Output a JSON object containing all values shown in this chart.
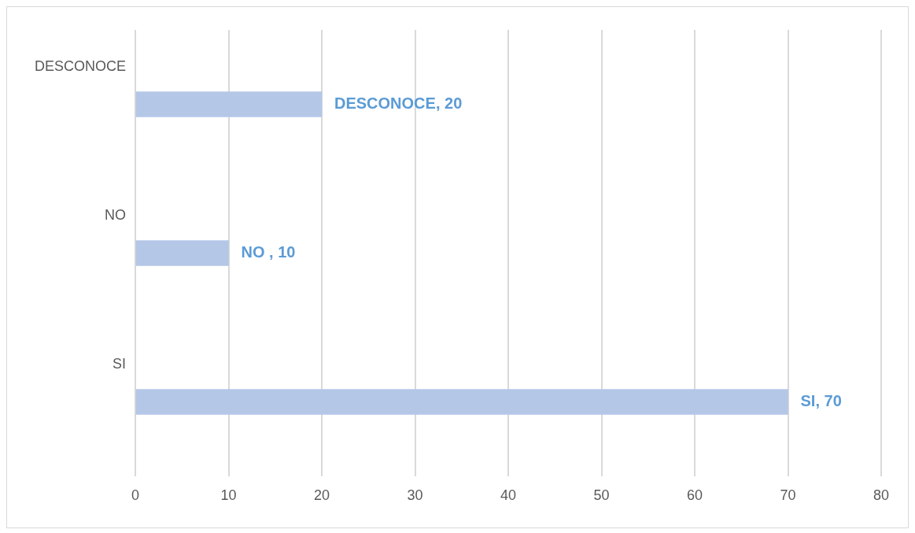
{
  "chart_data": {
    "type": "bar",
    "orientation": "horizontal",
    "categories": [
      "DESCONOCE",
      "NO",
      "SI"
    ],
    "values": [
      20,
      10,
      70
    ],
    "value_labels": [
      "DESCONOCE, 20",
      "NO , 10",
      "SI, 70"
    ],
    "color": "#b4c7e7",
    "xlim": [
      0,
      80
    ],
    "xticks": [
      0,
      10,
      20,
      30,
      40,
      50,
      60,
      70,
      80
    ],
    "grid": "x",
    "legend": false
  }
}
